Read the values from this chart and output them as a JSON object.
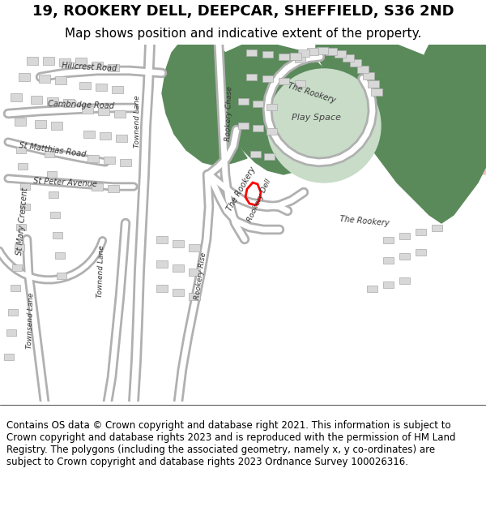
{
  "title": "19, ROOKERY DELL, DEEPCAR, SHEFFIELD, S36 2ND",
  "subtitle": "Map shows position and indicative extent of the property.",
  "copyright_text": "Contains OS data © Crown copyright and database right 2021. This information is subject to Crown copyright and database rights 2023 and is reproduced with the permission of HM Land Registry. The polygons (including the associated geometry, namely x, y co-ordinates) are subject to Crown copyright and database rights 2023 Ordnance Survey 100026316.",
  "map_bg": "#f5f5f5",
  "road_color": "#ffffff",
  "road_outline": "#cccccc",
  "building_color": "#e8e8e8",
  "building_outline": "#bbbbbb",
  "green_color": "#5a8a5a",
  "playspace_color": "#c8dcc8",
  "pink_color": "#f5c0c0",
  "red_boundary": "#ff0000",
  "title_fontsize": 13,
  "subtitle_fontsize": 11,
  "copyright_fontsize": 8.5
}
